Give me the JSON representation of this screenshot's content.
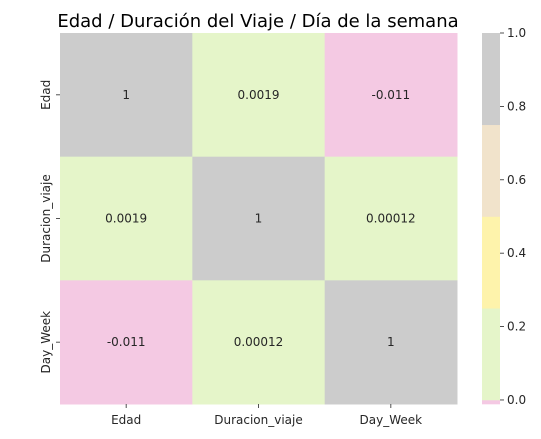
{
  "chart_data": {
    "type": "heatmap",
    "title": "Edad / Duración del Viaje / Día de la semana",
    "x_labels": [
      "Edad",
      "Duracion_viaje",
      "Day_Week"
    ],
    "y_labels": [
      "Edad",
      "Duracion_viaje",
      "Day_Week"
    ],
    "values": [
      [
        1,
        0.0019,
        -0.011
      ],
      [
        0.0019,
        1,
        0.00012
      ],
      [
        -0.011,
        0.00012,
        1
      ]
    ],
    "value_labels": [
      [
        "1",
        "0.0019",
        "-0.011"
      ],
      [
        "0.0019",
        "1",
        "0.00012"
      ],
      [
        "-0.011",
        "0.00012",
        "1"
      ]
    ],
    "colorbar": {
      "ticks": [
        "0.0",
        "0.2",
        "0.4",
        "0.6",
        "0.8",
        "1.0"
      ],
      "tick_values": [
        0.0,
        0.2,
        0.4,
        0.6,
        0.8,
        1.0
      ],
      "range": [
        -0.011,
        1
      ],
      "colors": [
        "#f4c9e3",
        "#e5f5c9",
        "#fef3ab",
        "#f1e3cb",
        "#cccccc"
      ],
      "boundaries": [
        -0.011,
        0.0,
        0.25,
        0.5,
        0.75,
        1
      ]
    }
  }
}
